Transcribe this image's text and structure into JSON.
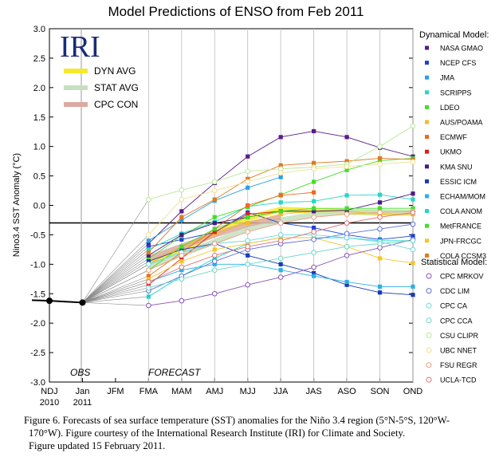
{
  "chart_data": {
    "type": "line",
    "title": "Model Predictions of ENSO from Feb 2011",
    "ylabel": "Nino3.4 SST Anomaly (°C)",
    "xlabel": "",
    "x_categories": [
      "NDJ",
      "Jan",
      "JFM",
      "FMA",
      "MAM",
      "AMJ",
      "MJJ",
      "JJA",
      "JAS",
      "ASO",
      "SON",
      "OND"
    ],
    "x_sublabels": [
      "2010",
      "2011"
    ],
    "ylim": [
      -3.0,
      3.0
    ],
    "yticks": [
      "3.0",
      "2.5",
      "2.0",
      "1.5",
      "1.0",
      "0.5",
      "0.0",
      "-0.5",
      "-1.0",
      "-1.5",
      "-2.0",
      "-2.5",
      "-3.0"
    ],
    "logo_text": "IRI",
    "region_labels": {
      "obs": "OBS",
      "forecast": "FORECAST"
    },
    "observed": {
      "x": [
        "NDJ",
        "Jan"
      ],
      "values": [
        -1.62,
        -1.65
      ]
    },
    "avg_legend": [
      {
        "name": "DYN AVG",
        "color": "#f5e92a"
      },
      {
        "name": "STAT AVG",
        "color": "#c6dfbf"
      },
      {
        "name": "CPC CON",
        "color": "#dca9a0"
      }
    ],
    "avg_series": [
      {
        "name": "DYN AVG",
        "color": "#f5e92a",
        "values": [
          -0.97,
          -0.75,
          -0.48,
          -0.22,
          -0.07,
          -0.09,
          -0.11,
          -0.13,
          -0.13
        ]
      },
      {
        "name": "STAT AVG",
        "color": "#c6dfbf",
        "values": [
          -1.05,
          -0.83,
          -0.62,
          -0.4,
          -0.25,
          -0.16,
          -0.11,
          -0.11,
          -0.12
        ]
      },
      {
        "name": "CPC CON",
        "color": "#dca9a0",
        "values": [
          -0.9,
          -0.7,
          -0.5,
          -0.32,
          -0.2,
          null,
          null,
          null,
          null
        ]
      }
    ],
    "forecast_months": [
      "FMA",
      "MAM",
      "AMJ",
      "MJJ",
      "JJA",
      "JAS",
      "ASO",
      "SON",
      "OND"
    ],
    "dyn_header": "Dynamical Model:",
    "stat_header": "Statistical Model:",
    "dynamical": [
      {
        "name": "NASA GMAO",
        "color": "#5b1a8a",
        "values": [
          -0.65,
          -0.1,
          0.38,
          0.83,
          1.16,
          1.26,
          1.16,
          0.98,
          0.83
        ]
      },
      {
        "name": "NCEP CFS",
        "color": "#2040d8",
        "values": [
          -0.7,
          -0.58,
          -0.46,
          -0.12,
          -0.3,
          -0.38,
          -0.5,
          -0.58,
          -0.52
        ]
      },
      {
        "name": "JMA",
        "color": "#2aa0e8",
        "values": [
          -0.6,
          -0.25,
          0.08,
          0.3,
          0.48,
          null,
          null,
          null,
          null
        ]
      },
      {
        "name": "SCRIPPS",
        "color": "#26d7c5",
        "values": [
          -0.75,
          -0.48,
          -0.28,
          -0.02,
          0.05,
          0.07,
          0.17,
          0.18,
          0.1
        ]
      },
      {
        "name": "LDEO",
        "color": "#44dd2a",
        "values": [
          -0.9,
          -0.52,
          -0.2,
          -0.03,
          0.18,
          0.4,
          0.6,
          0.76,
          0.8
        ]
      },
      {
        "name": "AUS/POAMA",
        "color": "#f5b92a",
        "values": [
          -1.0,
          -0.7,
          -0.48,
          -0.3,
          -0.15,
          -0.1,
          -0.1,
          -0.15,
          -0.15
        ]
      },
      {
        "name": "ECMWF",
        "color": "#ee6a20",
        "values": [
          -1.2,
          -0.8,
          -0.4,
          0.0,
          0.17,
          0.22,
          null,
          null,
          null
        ]
      },
      {
        "name": "UKMO",
        "color": "#dd1f1f",
        "values": [
          -1.35,
          -0.9,
          -0.45,
          -0.15,
          -0.1,
          null,
          null,
          null,
          null
        ]
      },
      {
        "name": "KMA SNU",
        "color": "#4a1a88",
        "values": [
          -0.85,
          -0.5,
          -0.3,
          -0.2,
          -0.1,
          -0.1,
          -0.08,
          0.05,
          0.2
        ]
      },
      {
        "name": "ESSIC ICM",
        "color": "#1a3ab8",
        "values": [
          -0.95,
          -0.75,
          -0.65,
          -0.85,
          -1.0,
          -1.15,
          -1.35,
          -1.48,
          -1.52
        ]
      },
      {
        "name": "ECHAM/MOM",
        "color": "#2ab0e8",
        "values": [
          -1.3,
          -1.1,
          -1.0,
          -1.0,
          -1.1,
          -1.2,
          -1.3,
          -1.38,
          -1.38
        ]
      },
      {
        "name": "COLA ANOM",
        "color": "#22d6c4",
        "values": [
          -1.55,
          -1.2,
          -0.9,
          -0.65,
          -0.55,
          -0.55,
          -0.55,
          -0.6,
          -0.6
        ]
      },
      {
        "name": "MetFRANCE",
        "color": "#44dd2a",
        "values": [
          -1.1,
          -0.7,
          -0.4,
          -0.2,
          -0.1,
          -0.05,
          -0.05,
          -0.05,
          -0.05
        ]
      },
      {
        "name": "JPN-FRCGC",
        "color": "#f5c52a",
        "values": [
          -1.25,
          -0.95,
          -0.75,
          -0.65,
          -0.55,
          -0.55,
          -0.7,
          -0.9,
          -0.98
        ]
      },
      {
        "name": "COLA CCSM3",
        "color": "#e07a20",
        "values": [
          -0.8,
          -0.2,
          0.1,
          0.45,
          0.68,
          0.72,
          0.75,
          0.8,
          0.78
        ]
      }
    ],
    "statistical": [
      {
        "name": "CPC MRKOV",
        "color": "#8a52b8",
        "values": [
          -1.7,
          -1.62,
          -1.5,
          -1.35,
          -1.22,
          -1.05,
          -0.85,
          -0.72,
          -0.58
        ]
      },
      {
        "name": "CDC LIM",
        "color": "#6070d8",
        "values": [
          -1.45,
          -1.2,
          -0.95,
          -0.75,
          -0.65,
          -0.58,
          -0.48,
          -0.4,
          -0.32
        ]
      },
      {
        "name": "CPC CA",
        "color": "#6ad8e0",
        "values": [
          -1.0,
          -0.8,
          -0.65,
          -0.6,
          -0.5,
          -0.5,
          -0.55,
          -0.62,
          -0.75
        ]
      },
      {
        "name": "CPC CCA",
        "color": "#6ad8c8",
        "values": [
          -1.4,
          -1.25,
          -1.1,
          -1.0,
          -0.9,
          -0.8,
          -0.7,
          -0.65,
          -0.6
        ]
      },
      {
        "name": "CSU CLIPR",
        "color": "#b8e898",
        "values": [
          0.1,
          0.26,
          0.4,
          0.58,
          0.62,
          0.65,
          0.7,
          1.0,
          1.35
        ]
      },
      {
        "name": "UBC NNET",
        "color": "#f0e090",
        "values": [
          -0.5,
          0.1,
          0.25,
          0.4,
          0.55,
          0.62,
          0.66,
          0.7,
          0.74
        ]
      },
      {
        "name": "FSU REGR",
        "color": "#f0a080",
        "values": [
          -1.1,
          -0.85,
          -0.65,
          -0.45,
          -0.3,
          -0.2,
          -0.15,
          -0.12,
          -0.1
        ]
      },
      {
        "name": "UCLA-TCD",
        "color": "#e07070",
        "values": [
          -1.3,
          -1.05,
          -0.85,
          -0.7,
          -0.6,
          -0.45,
          -0.3,
          -0.2,
          -0.12
        ]
      }
    ]
  },
  "caption": {
    "line1": "Figure 6. Forecasts of sea surface temperature (SST) anomalies  for the Niño 3.4 region (5°N-5°S, 120°W-",
    "line2": "170°W).  Figure courtesy of the International Research Institute (IRI) for Climate and Society.",
    "line3": "Figure updated 15 February 2011."
  }
}
